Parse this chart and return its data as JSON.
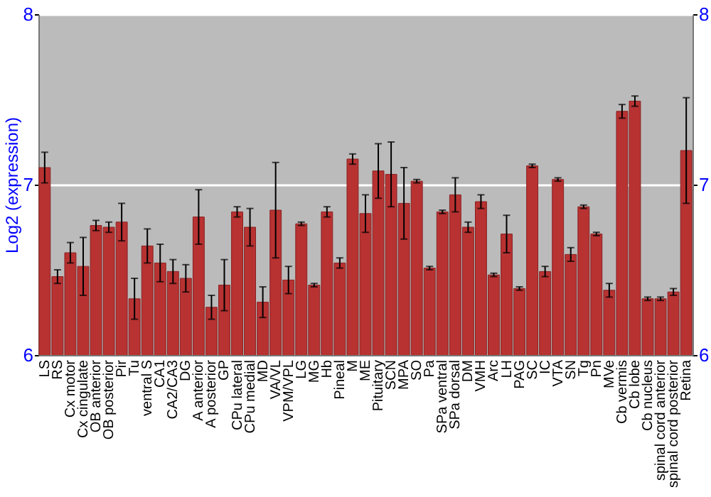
{
  "chart_data": {
    "type": "bar",
    "ylabel": "Log2 (expression)",
    "categories": [
      "LS",
      "RS",
      "Cx motor",
      "Cx cingulate",
      "OB anterior",
      "OB posterior",
      "Pir",
      "Tu",
      "ventral S",
      "CA1",
      "CA2/CA3",
      "DG",
      "A anterior",
      "A posterior",
      "GP",
      "CPu lateral",
      "CPu medial",
      "MD",
      "VA/VL",
      "VPM/VPL",
      "LG",
      "MG",
      "Hb",
      "Pineal",
      "M",
      "ME",
      "Pituitary",
      "SCN",
      "MPA",
      "SO",
      "Pa",
      "SPa ventral",
      "SPa dorsal",
      "DM",
      "VMH",
      "Arc",
      "LH",
      "PAG",
      "SC",
      "IC",
      "VTA",
      "SN",
      "Tg",
      "Pn",
      "MVe",
      "Cb vermis",
      "Cb lobe",
      "Cb nucleus",
      "spinal cord anterior",
      "spinal cord posterior",
      "Retina"
    ],
    "values": [
      7.1,
      6.46,
      6.6,
      6.52,
      6.76,
      6.75,
      6.78,
      6.33,
      6.64,
      6.54,
      6.49,
      6.45,
      6.81,
      6.28,
      6.41,
      6.84,
      6.75,
      6.31,
      6.85,
      6.44,
      6.77,
      6.41,
      6.84,
      6.54,
      7.15,
      6.83,
      7.08,
      7.06,
      6.89,
      7.02,
      6.51,
      6.84,
      6.94,
      6.75,
      6.9,
      6.47,
      6.71,
      6.39,
      7.11,
      6.49,
      7.03,
      6.59,
      6.87,
      6.71,
      6.38,
      7.43,
      7.49,
      6.33,
      6.33,
      6.37,
      7.2
    ],
    "errors": [
      0.09,
      0.04,
      0.06,
      0.17,
      0.03,
      0.03,
      0.11,
      0.12,
      0.1,
      0.11,
      0.07,
      0.08,
      0.16,
      0.07,
      0.15,
      0.03,
      0.11,
      0.09,
      0.28,
      0.08,
      0.01,
      0.01,
      0.03,
      0.03,
      0.03,
      0.11,
      0.16,
      0.19,
      0.21,
      0.01,
      0.01,
      0.01,
      0.1,
      0.03,
      0.04,
      0.01,
      0.11,
      0.01,
      0.01,
      0.03,
      0.01,
      0.04,
      0.01,
      0.01,
      0.04,
      0.04,
      0.03,
      0.01,
      0.01,
      0.02,
      0.31
    ],
    "color": "#b83232",
    "ylim": [
      6,
      8
    ],
    "yticks": [
      6,
      7,
      8
    ],
    "y2lim": [
      6,
      8
    ],
    "y2ticks": [
      6,
      7,
      8
    ],
    "grid": "y"
  }
}
